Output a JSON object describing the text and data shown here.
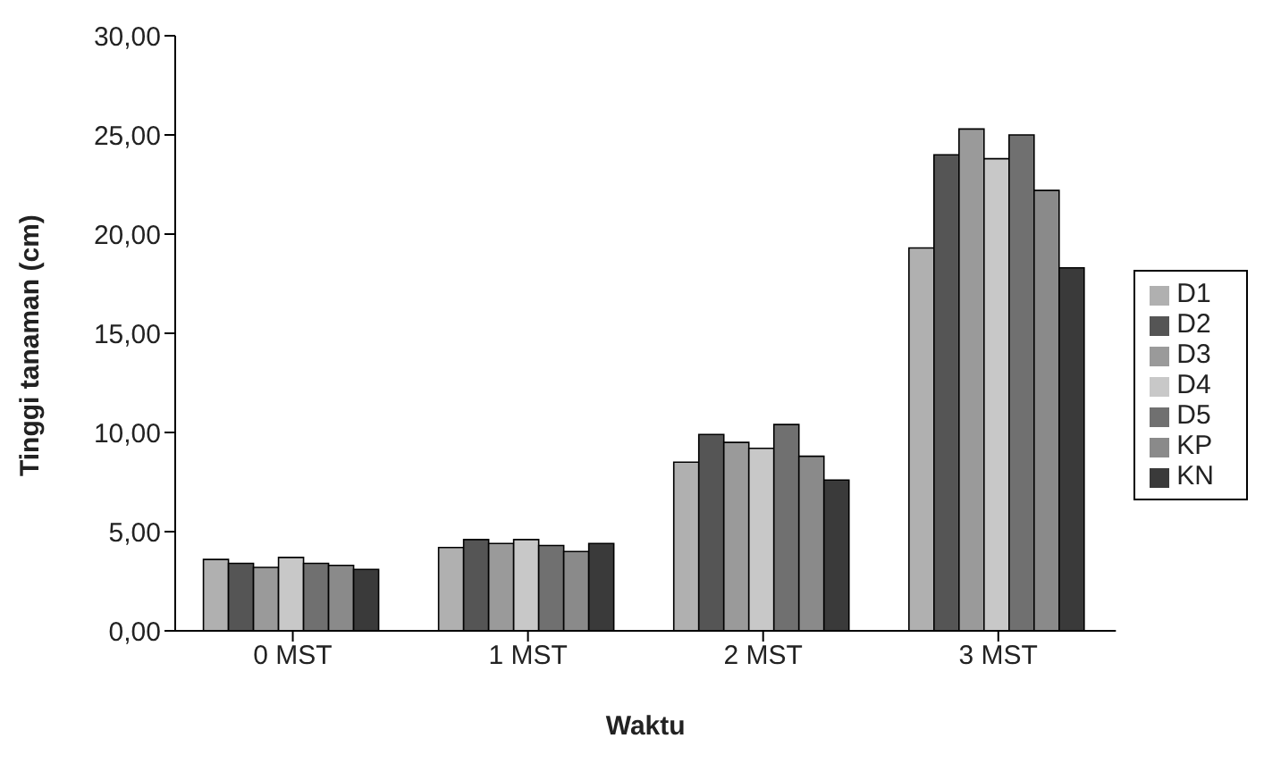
{
  "chart_data": {
    "type": "bar",
    "xlabel": "Waktu",
    "ylabel": "Tinggi tanaman (cm)",
    "categories": [
      "0 MST",
      "1 MST",
      "2 MST",
      "3 MST"
    ],
    "series": [
      {
        "name": "D1",
        "color": "#b0b0b0",
        "values": [
          3.6,
          4.2,
          8.5,
          19.3
        ]
      },
      {
        "name": "D2",
        "color": "#555555",
        "values": [
          3.4,
          4.6,
          9.9,
          24.0
        ]
      },
      {
        "name": "D3",
        "color": "#9a9a9a",
        "values": [
          3.2,
          4.4,
          9.5,
          25.3
        ]
      },
      {
        "name": "D4",
        "color": "#c8c8c8",
        "values": [
          3.7,
          4.6,
          9.2,
          23.8
        ]
      },
      {
        "name": "D5",
        "color": "#707070",
        "values": [
          3.4,
          4.3,
          10.4,
          25.0
        ]
      },
      {
        "name": "KP",
        "color": "#8a8a8a",
        "values": [
          3.3,
          4.0,
          8.8,
          22.2
        ]
      },
      {
        "name": "KN",
        "color": "#3a3a3a",
        "values": [
          3.1,
          4.4,
          7.6,
          18.3
        ]
      }
    ],
    "ylim": [
      0,
      30
    ],
    "yticks": [
      {
        "value": 0,
        "label": "0,00"
      },
      {
        "value": 5,
        "label": "5,00"
      },
      {
        "value": 10,
        "label": "10,00"
      },
      {
        "value": 15,
        "label": "15,00"
      },
      {
        "value": 20,
        "label": "20,00"
      },
      {
        "value": 25,
        "label": "25,00"
      },
      {
        "value": 30,
        "label": "30,00"
      }
    ],
    "grid": false,
    "legend": "right"
  }
}
